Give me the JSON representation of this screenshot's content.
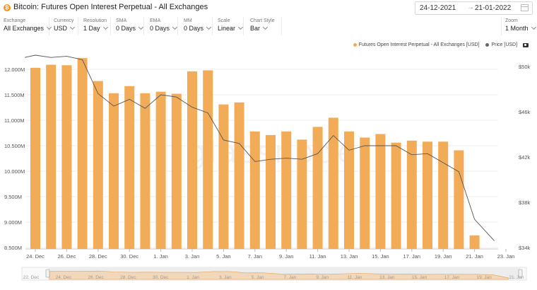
{
  "header": {
    "title": "Bitcoin: Futures Open Interest Perpetual - All Exchanges",
    "coin_icon": "bitcoin-icon",
    "date_from": "24-12-2021",
    "date_to": "21-01-2022",
    "arrow": "→",
    "calendar_icon": "calendar-icon"
  },
  "controls": {
    "exchange": {
      "label": "Exchange",
      "value": "All Exchanges"
    },
    "currency": {
      "label": "Currency",
      "value": "USD"
    },
    "resolution": {
      "label": "Resolution",
      "value": "1 Day"
    },
    "sma": {
      "label": "SMA",
      "value": "0 Days"
    },
    "ema": {
      "label": "EMA",
      "value": "0 Days"
    },
    "mm": {
      "label": "MM",
      "value": "0 Days"
    },
    "scale": {
      "label": "Scale",
      "value": "Linear"
    },
    "chart_style": {
      "label": "Chart Style",
      "value": "Bar"
    },
    "zoom": {
      "label": "Zoom",
      "value": "1 Month"
    }
  },
  "legend": {
    "oi_label": "Futures Open Interest Perpetual - All Exchanges [USD]",
    "price_label": "Price [USD]",
    "camera_icon": "camera-icon"
  },
  "watermark": "glassnode",
  "colors": {
    "bar": "#f2ac58",
    "price": "#555555",
    "nav_fill": "#f5c99a"
  },
  "chart_data": {
    "type": "bar",
    "x": [
      "2021-12-24",
      "2021-12-25",
      "2021-12-26",
      "2021-12-27",
      "2021-12-28",
      "2021-12-29",
      "2021-12-30",
      "2021-12-31",
      "2022-01-01",
      "2022-01-02",
      "2022-01-03",
      "2022-01-04",
      "2022-01-05",
      "2022-01-06",
      "2022-01-07",
      "2022-01-08",
      "2022-01-09",
      "2022-01-10",
      "2022-01-11",
      "2022-01-12",
      "2022-01-13",
      "2022-01-14",
      "2022-01-15",
      "2022-01-16",
      "2022-01-17",
      "2022-01-18",
      "2022-01-19",
      "2022-01-20",
      "2022-01-21"
    ],
    "series": [
      {
        "name": "Futures Open Interest Perpetual - All Exchanges [USD]",
        "axis": "left",
        "values": [
          12030,
          12090,
          12080,
          12220,
          11770,
          11530,
          11670,
          11530,
          11560,
          11520,
          11960,
          11980,
          11310,
          11350,
          10780,
          10710,
          10780,
          10620,
          10870,
          11050,
          10780,
          10660,
          10730,
          10560,
          10600,
          10580,
          10580,
          10410,
          8740
        ]
      },
      {
        "name": "Price [USD]",
        "axis": "right",
        "values": [
          51000,
          50800,
          50900,
          50600,
          47600,
          46500,
          47100,
          46300,
          47500,
          47300,
          46400,
          45900,
          43500,
          43200,
          41600,
          41800,
          41900,
          41800,
          42300,
          43900,
          42600,
          43000,
          43000,
          43000,
          42200,
          42300,
          41500,
          40700,
          36500
        ]
      }
    ],
    "left_axis": {
      "ticks": [
        "12.000M",
        "11.500M",
        "11.000M",
        "10.500M",
        "10.000M",
        "9.500M",
        "9.000M",
        "8.500M"
      ],
      "tick_values": [
        12000,
        11500,
        11000,
        10500,
        10000,
        9500,
        9000,
        8500
      ],
      "unit": "M USD"
    },
    "right_axis": {
      "ticks": [
        "$50k",
        "$46k",
        "$42k",
        "$38k",
        "$34k"
      ],
      "tick_values": [
        50000,
        46000,
        42000,
        38000,
        34000
      ]
    },
    "x_tick_labels": [
      "24. Dec",
      "26. Dec",
      "28. Dec",
      "30. Dec",
      "1. Jan",
      "3. Jan",
      "5. Jan",
      "7. Jan",
      "9. Jan",
      "11. Jan",
      "13. Jan",
      "15. Jan",
      "17. Jan",
      "19. Jan",
      "21. Jan",
      "23. Jan"
    ],
    "navigator_labels": [
      "22. Dec",
      "24. Dec",
      "26. Dec",
      "28. Dec",
      "30. Dec",
      "1. Jan",
      "3. Jan",
      "5. Jan",
      "7. Jan",
      "9. Jan",
      "11. Jan",
      "13. Jan",
      "15. Jan",
      "17. Jan",
      "19. Jan",
      "21. Jan"
    ],
    "grid": true,
    "legend_position": "top-right"
  }
}
